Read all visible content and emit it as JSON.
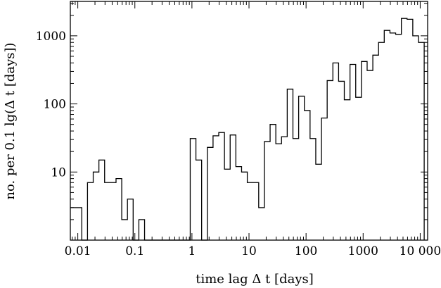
{
  "chart_data": {
    "type": "histogram-step",
    "xlabel": "time lag Δ t [days]",
    "ylabel": "no. per 0.1 lg(Δ t [days])",
    "x_scale": "log",
    "y_scale": "log",
    "xlim": [
      0.0074,
      13500
    ],
    "ylim": [
      1,
      3200
    ],
    "x_ticks": [
      {
        "value": 0.01,
        "label": "0.01"
      },
      {
        "value": 0.1,
        "label": "0.1"
      },
      {
        "value": 1,
        "label": "1"
      },
      {
        "value": 10,
        "label": "10"
      },
      {
        "value": 100,
        "label": "100"
      },
      {
        "value": 1000,
        "label": "1000"
      },
      {
        "value": 10000,
        "label": "10 000"
      }
    ],
    "y_ticks": [
      {
        "value": 10,
        "label": "10"
      },
      {
        "value": 100,
        "label": "100"
      },
      {
        "value": 1000,
        "label": "1000"
      }
    ],
    "bin_width_log10": 0.1,
    "first_bin_left_log10": -2.13,
    "values": [
      3,
      3,
      1,
      7,
      10,
      15,
      7,
      7,
      8,
      2,
      4,
      1,
      2,
      1,
      1,
      1,
      1,
      1,
      1,
      1,
      1,
      31,
      15,
      1,
      23,
      34,
      38,
      11,
      35,
      12,
      10,
      7,
      7,
      3,
      28,
      50,
      26,
      33,
      165,
      31,
      130,
      80,
      31,
      13,
      62,
      220,
      400,
      215,
      115,
      380,
      125,
      420,
      310,
      520,
      800,
      1200,
      1100,
      1050,
      1800,
      1750,
      1000,
      800
    ]
  }
}
